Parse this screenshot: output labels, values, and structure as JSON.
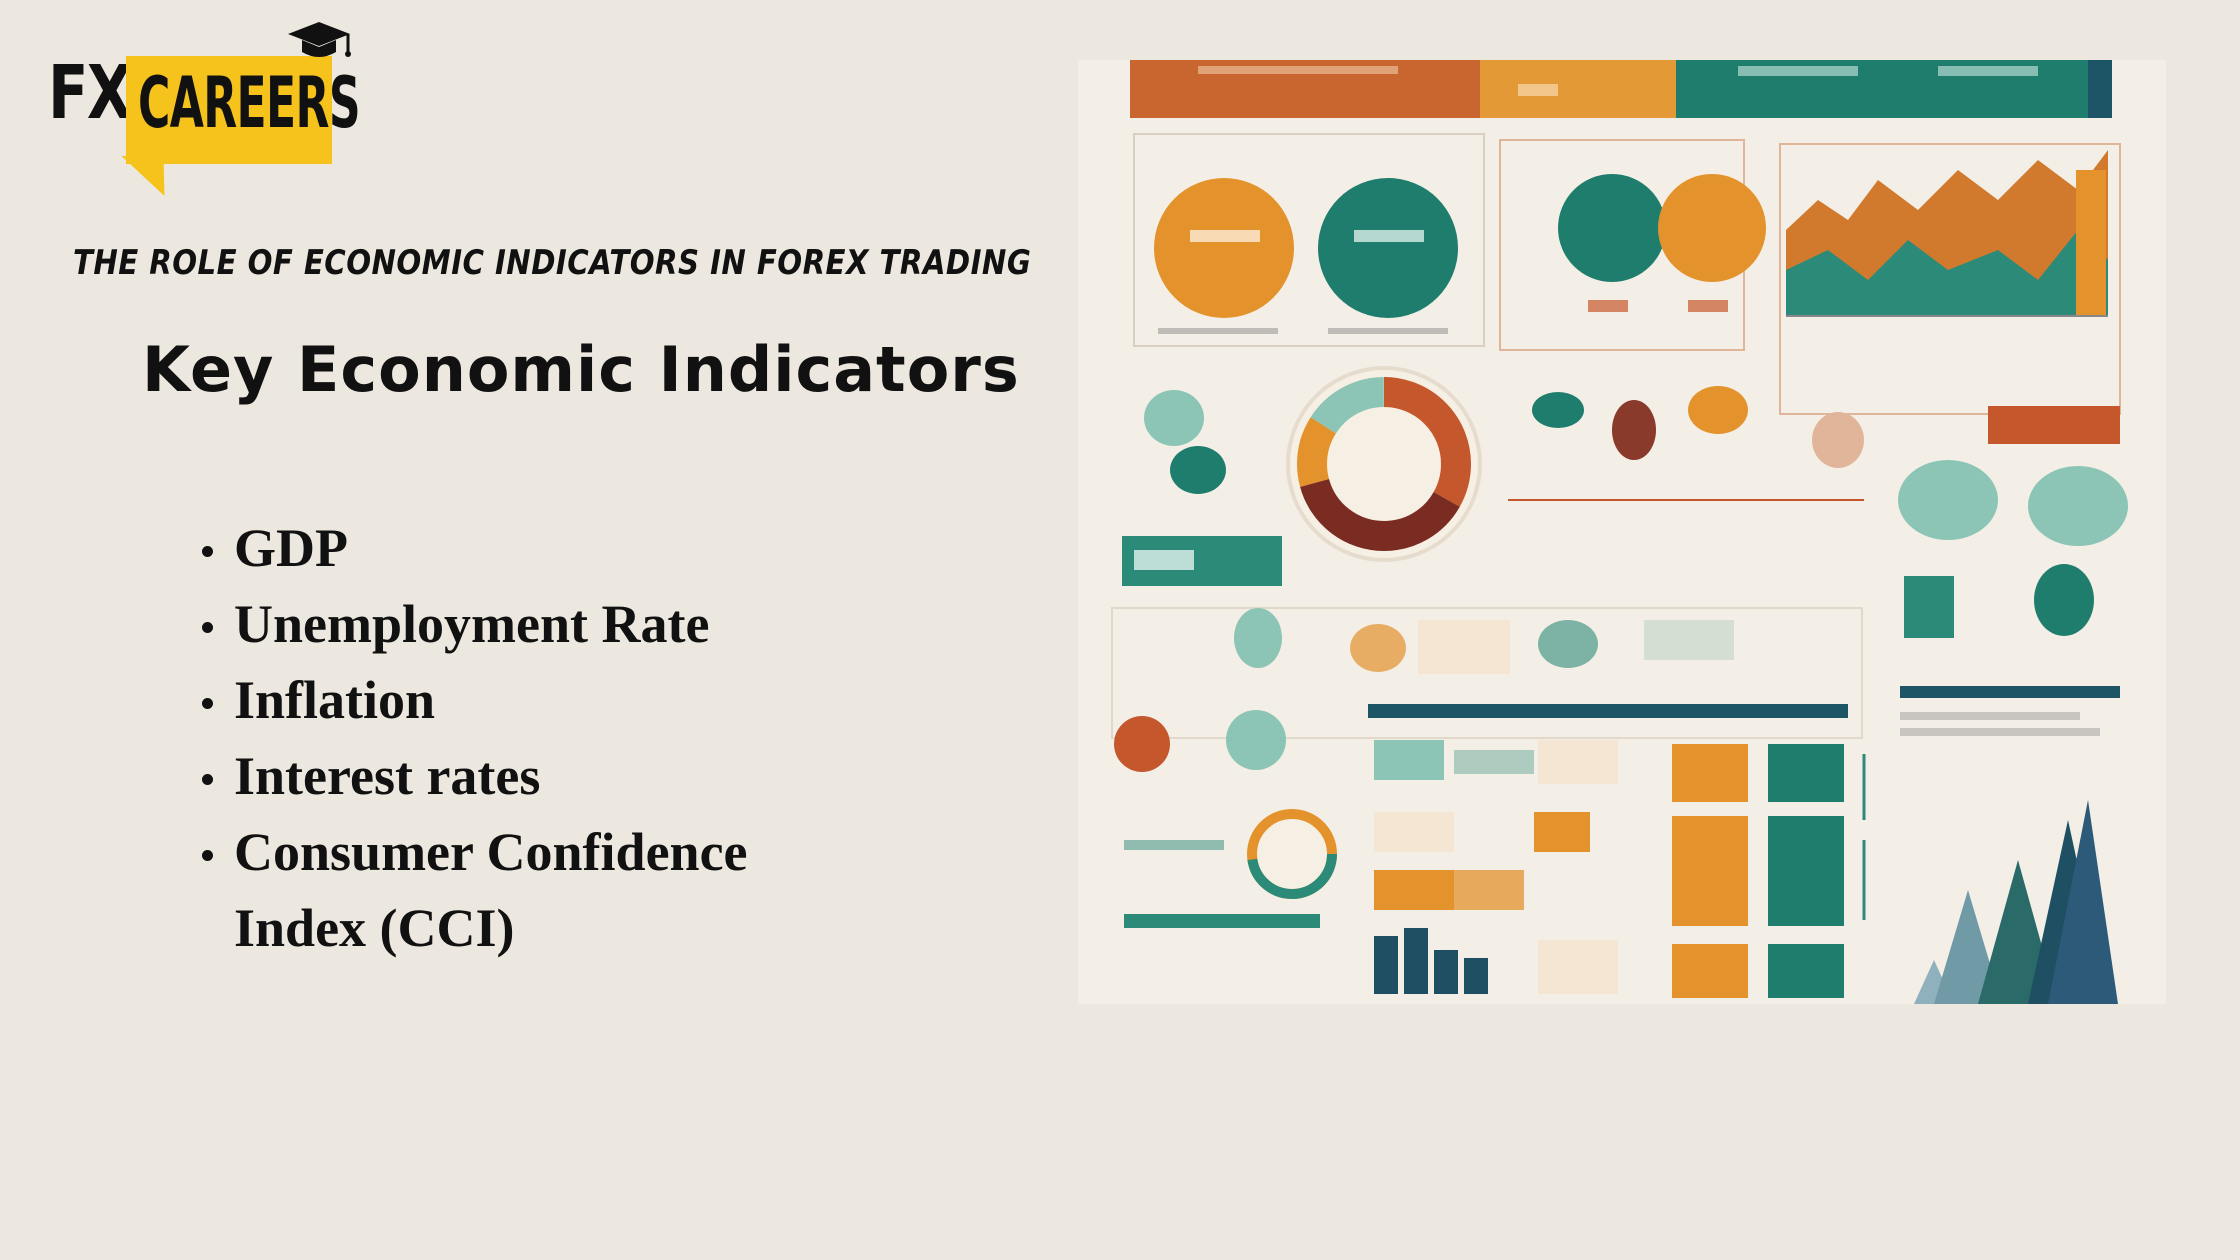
{
  "logo": {
    "fx": "FX",
    "careers": "CAREERS"
  },
  "subtitle": "THE ROLE OF ECONOMIC INDICATORS IN FOREX TRADING",
  "heading": "Key Economic Indicators",
  "indicators": [
    "GDP",
    "Unemployment Rate",
    "Inflation",
    "Interest rates",
    "Consumer Confidence Index (CCI)"
  ],
  "colors": {
    "background": "#ede8df",
    "logo_yellow": "#f6c21c",
    "infographic_orange": "#e08a2a",
    "infographic_teal": "#1f7d6e",
    "infographic_rust": "#c4582c",
    "infographic_navy": "#1e4f63"
  }
}
